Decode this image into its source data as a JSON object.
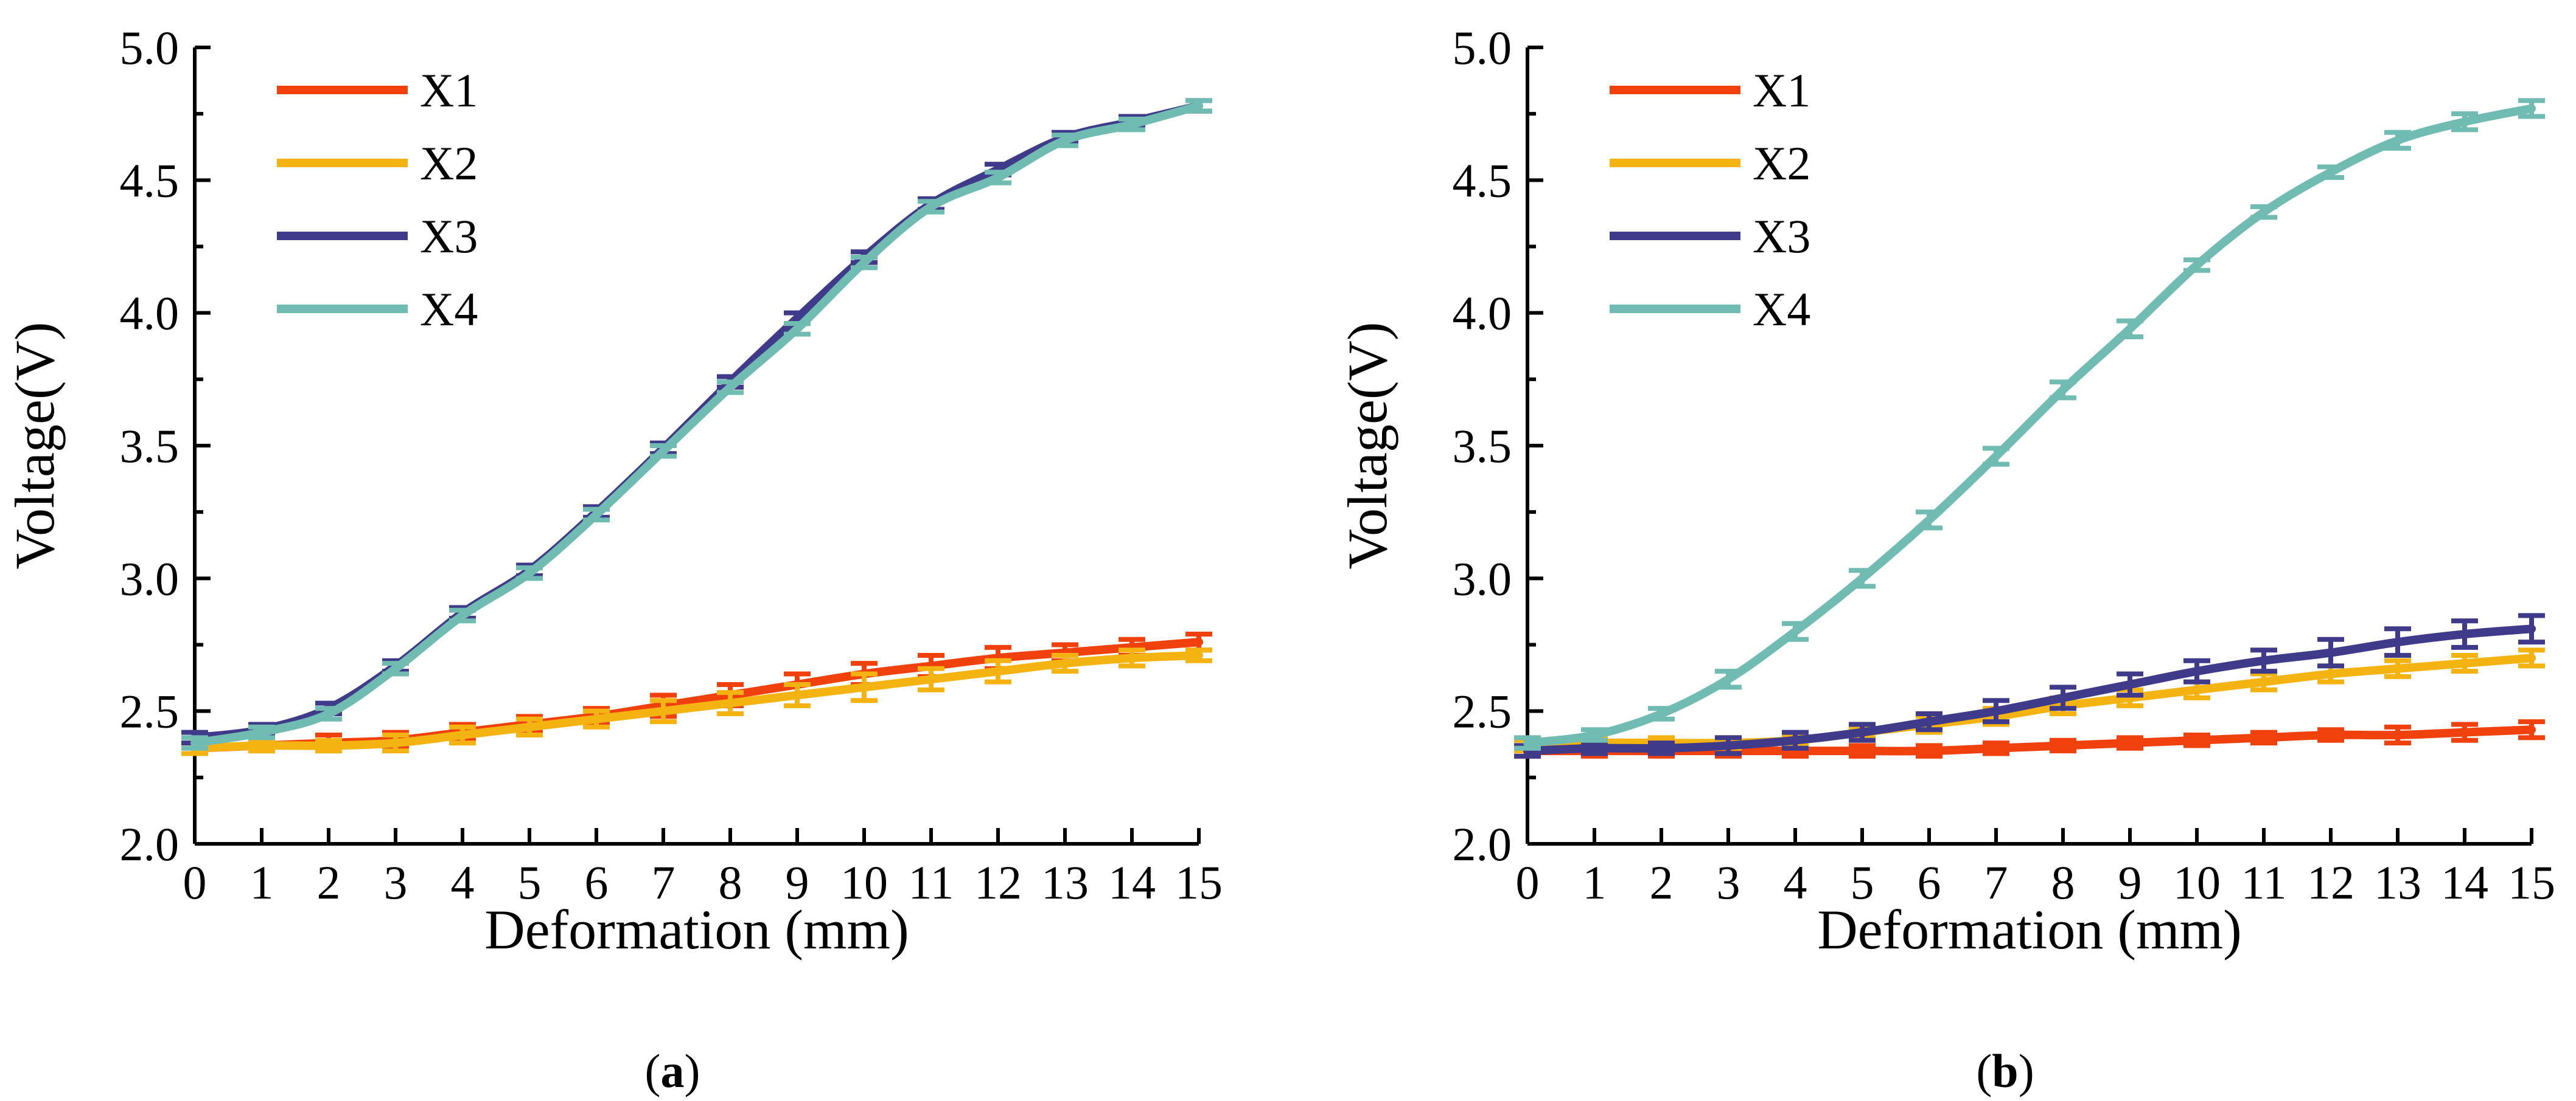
{
  "chart_data": [
    {
      "type": "line",
      "panel_label": "a",
      "xlabel": "Deformation (mm)",
      "ylabel": "Voltage(V)",
      "xlim": [
        0,
        15
      ],
      "ylim": [
        2.0,
        5.0
      ],
      "x_ticks": [
        0,
        1,
        2,
        3,
        4,
        5,
        6,
        7,
        8,
        9,
        10,
        11,
        12,
        13,
        14,
        15
      ],
      "y_ticks": [
        "2.0",
        "2.5",
        "3.0",
        "3.5",
        "4.0",
        "4.5",
        "5.0"
      ],
      "legend_position": "top-left",
      "x": [
        0,
        1,
        2,
        3,
        4,
        5,
        6,
        7,
        8,
        9,
        10,
        11,
        12,
        13,
        14,
        15
      ],
      "series": [
        {
          "name": "X1",
          "color": "#f0410c",
          "values": [
            2.36,
            2.37,
            2.38,
            2.39,
            2.42,
            2.45,
            2.48,
            2.52,
            2.56,
            2.6,
            2.64,
            2.67,
            2.7,
            2.72,
            2.74,
            2.76
          ],
          "errors": [
            0.02,
            0.02,
            0.03,
            0.03,
            0.03,
            0.03,
            0.03,
            0.04,
            0.04,
            0.04,
            0.04,
            0.04,
            0.04,
            0.03,
            0.03,
            0.03
          ]
        },
        {
          "name": "X2",
          "color": "#f5b312",
          "values": [
            2.36,
            2.37,
            2.37,
            2.38,
            2.41,
            2.44,
            2.47,
            2.5,
            2.53,
            2.56,
            2.59,
            2.62,
            2.65,
            2.68,
            2.7,
            2.71
          ],
          "errors": [
            0.02,
            0.02,
            0.02,
            0.03,
            0.03,
            0.03,
            0.03,
            0.04,
            0.04,
            0.04,
            0.05,
            0.04,
            0.04,
            0.03,
            0.03,
            0.02
          ]
        },
        {
          "name": "X3",
          "color": "#3f3a8a",
          "values": [
            2.4,
            2.43,
            2.51,
            2.67,
            2.87,
            3.03,
            3.25,
            3.49,
            3.74,
            3.98,
            4.21,
            4.41,
            4.54,
            4.66,
            4.72,
            4.78
          ],
          "errors": [
            0.02,
            0.02,
            0.02,
            0.02,
            0.02,
            0.02,
            0.02,
            0.02,
            0.02,
            0.02,
            0.02,
            0.02,
            0.02,
            0.02,
            0.02,
            0.02
          ]
        },
        {
          "name": "X4",
          "color": "#70bcb2",
          "values": [
            2.38,
            2.42,
            2.49,
            2.66,
            2.86,
            3.02,
            3.24,
            3.48,
            3.72,
            3.94,
            4.19,
            4.4,
            4.51,
            4.65,
            4.71,
            4.78
          ],
          "errors": [
            0.02,
            0.02,
            0.02,
            0.02,
            0.02,
            0.02,
            0.02,
            0.02,
            0.02,
            0.02,
            0.02,
            0.02,
            0.02,
            0.02,
            0.02,
            0.02
          ]
        }
      ]
    },
    {
      "type": "line",
      "panel_label": "b",
      "xlabel": "Deformation (mm)",
      "ylabel": "Voltage(V)",
      "xlim": [
        0,
        15
      ],
      "ylim": [
        2.0,
        5.0
      ],
      "x_ticks": [
        0,
        1,
        2,
        3,
        4,
        5,
        6,
        7,
        8,
        9,
        10,
        11,
        12,
        13,
        14,
        15
      ],
      "y_ticks": [
        "2.0",
        "2.5",
        "3.0",
        "3.5",
        "4.0",
        "4.5",
        "5.0"
      ],
      "legend_position": "top-left",
      "x": [
        0,
        1,
        2,
        3,
        4,
        5,
        6,
        7,
        8,
        9,
        10,
        11,
        12,
        13,
        14,
        15
      ],
      "series": [
        {
          "name": "X1",
          "color": "#f0410c",
          "values": [
            2.35,
            2.35,
            2.35,
            2.35,
            2.35,
            2.35,
            2.35,
            2.36,
            2.37,
            2.38,
            2.39,
            2.4,
            2.41,
            2.41,
            2.42,
            2.43
          ],
          "errors": [
            0.02,
            0.02,
            0.02,
            0.02,
            0.02,
            0.02,
            0.02,
            0.02,
            0.02,
            0.02,
            0.02,
            0.02,
            0.02,
            0.03,
            0.03,
            0.03
          ]
        },
        {
          "name": "X2",
          "color": "#f5b312",
          "values": [
            2.37,
            2.38,
            2.38,
            2.38,
            2.39,
            2.42,
            2.45,
            2.48,
            2.52,
            2.55,
            2.58,
            2.61,
            2.64,
            2.66,
            2.68,
            2.7
          ],
          "errors": [
            0.02,
            0.02,
            0.02,
            0.02,
            0.02,
            0.02,
            0.03,
            0.03,
            0.03,
            0.03,
            0.03,
            0.03,
            0.03,
            0.03,
            0.03,
            0.03
          ]
        },
        {
          "name": "X3",
          "color": "#3f3a8a",
          "values": [
            2.35,
            2.36,
            2.36,
            2.37,
            2.39,
            2.42,
            2.46,
            2.5,
            2.55,
            2.6,
            2.65,
            2.69,
            2.72,
            2.76,
            2.79,
            2.81
          ],
          "errors": [
            0.02,
            0.02,
            0.02,
            0.03,
            0.03,
            0.03,
            0.03,
            0.04,
            0.04,
            0.04,
            0.04,
            0.04,
            0.05,
            0.05,
            0.05,
            0.05
          ]
        },
        {
          "name": "X4",
          "color": "#70bcb2",
          "values": [
            2.38,
            2.41,
            2.49,
            2.62,
            2.8,
            3.0,
            3.22,
            3.46,
            3.71,
            3.94,
            4.18,
            4.38,
            4.53,
            4.65,
            4.72,
            4.77
          ],
          "errors": [
            0.02,
            0.02,
            0.02,
            0.03,
            0.03,
            0.03,
            0.03,
            0.03,
            0.03,
            0.03,
            0.02,
            0.02,
            0.02,
            0.03,
            0.03,
            0.03
          ]
        }
      ]
    }
  ]
}
